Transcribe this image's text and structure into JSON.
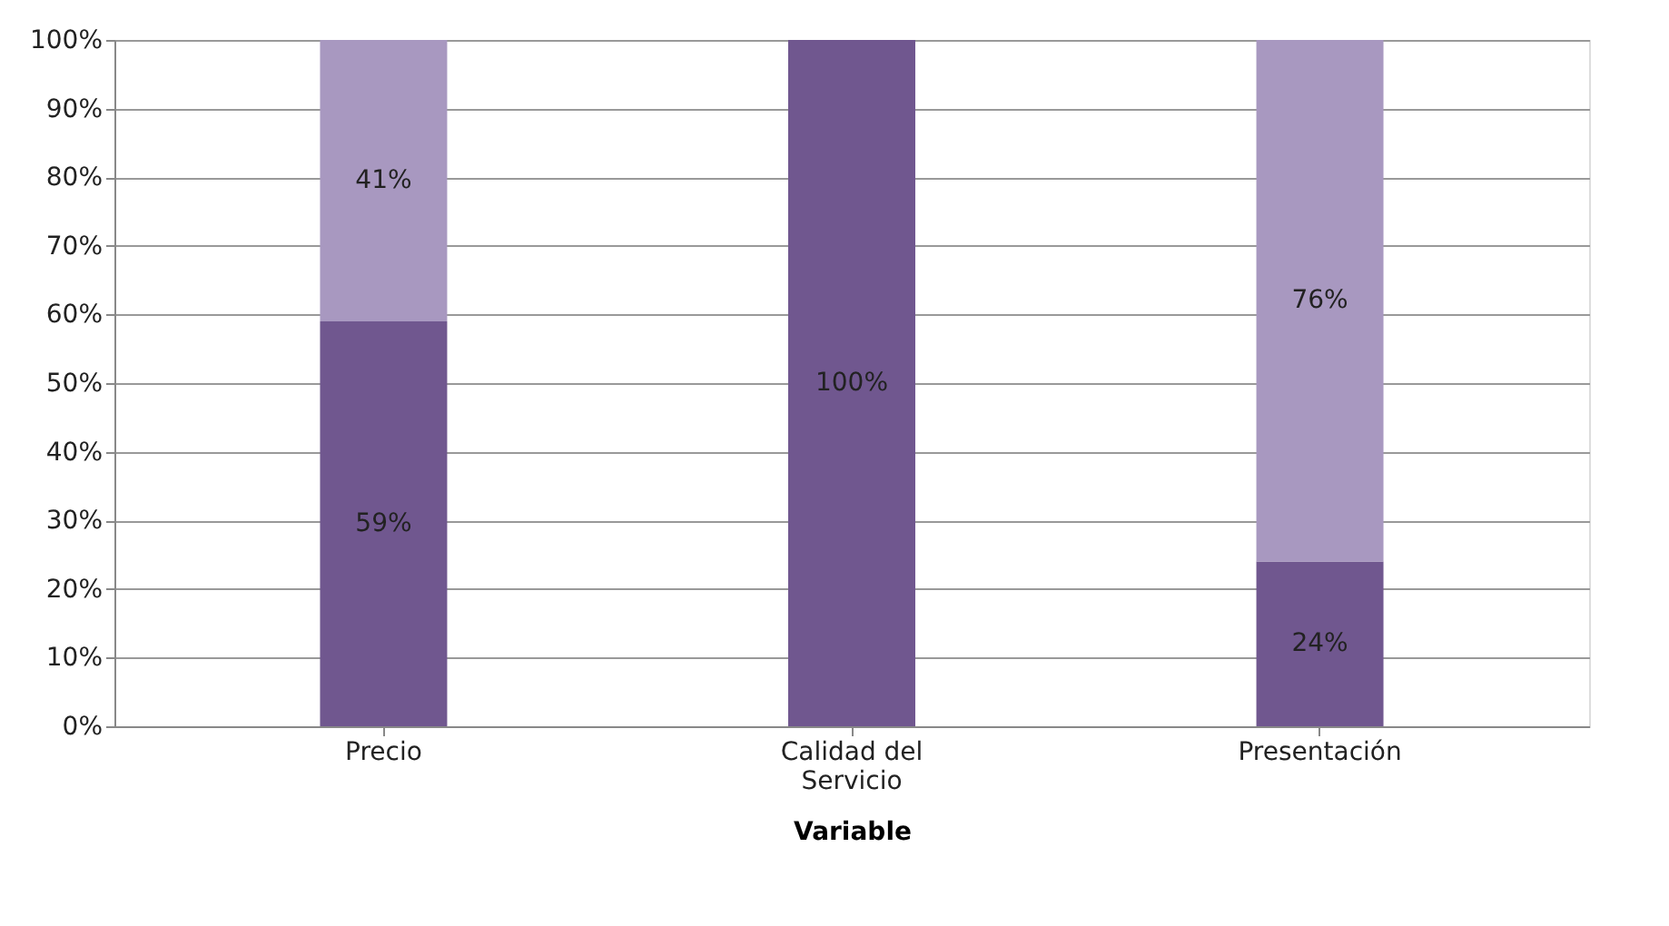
{
  "chart_data": {
    "type": "bar",
    "stacked": true,
    "xlabel": "Variable",
    "categories": [
      "Precio",
      "Calidad del Servicio",
      "Presentación"
    ],
    "series": [
      {
        "color": "#70578f",
        "values": [
          59,
          100,
          24
        ],
        "value_labels": [
          "59%",
          "100%",
          "24%"
        ]
      },
      {
        "color": "#a898c0",
        "values": [
          41,
          0,
          76
        ],
        "value_labels": [
          "41%",
          null,
          "76%"
        ]
      }
    ],
    "ylim": [
      0,
      100
    ],
    "yticks": [
      {
        "value": 0,
        "label": "0%"
      },
      {
        "value": 10,
        "label": "10%"
      },
      {
        "value": 20,
        "label": "20%"
      },
      {
        "value": 30,
        "label": "30%"
      },
      {
        "value": 40,
        "label": "40%"
      },
      {
        "value": 50,
        "label": "50%"
      },
      {
        "value": 60,
        "label": "60%"
      },
      {
        "value": 70,
        "label": "70%"
      },
      {
        "value": 80,
        "label": "80%"
      },
      {
        "value": 90,
        "label": "90%"
      },
      {
        "value": 100,
        "label": "100%"
      }
    ],
    "grid": "y",
    "legend": false
  }
}
